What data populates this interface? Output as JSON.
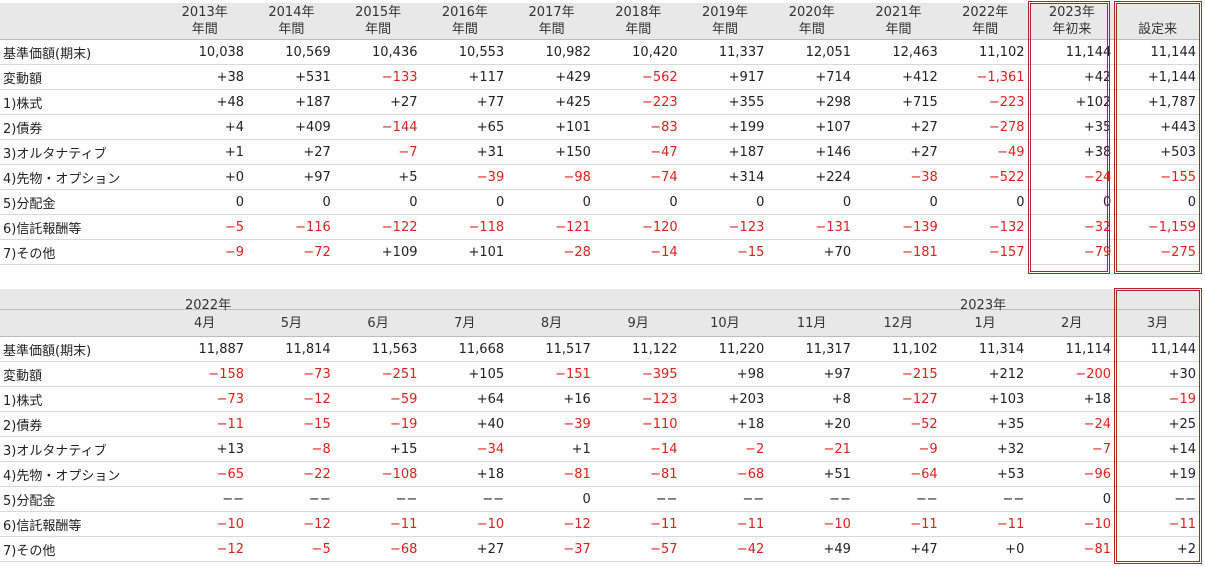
{
  "annual_table": {
    "header_top": [
      "2013年",
      "2014年",
      "2015年",
      "2016年",
      "2017年",
      "2018年",
      "2019年",
      "2020年",
      "2021年",
      "2022年",
      "2023年",
      ""
    ],
    "header_bottom": [
      "年間",
      "年間",
      "年間",
      "年間",
      "年間",
      "年間",
      "年間",
      "年間",
      "年間",
      "年間",
      "年初来",
      "設定来"
    ],
    "rows": [
      {
        "label": "基準価額(期末)",
        "values": [
          "10,038",
          "10,569",
          "10,436",
          "10,553",
          "10,982",
          "10,420",
          "11,337",
          "12,051",
          "12,463",
          "11,102",
          "11,144",
          "11,144"
        ]
      },
      {
        "label": "変動額",
        "values": [
          "+38",
          "+531",
          "−133",
          "+117",
          "+429",
          "−562",
          "+917",
          "+714",
          "+412",
          "−1,361",
          "+42",
          "+1,144"
        ]
      },
      {
        "label": "1)株式",
        "values": [
          "+48",
          "+187",
          "+27",
          "+77",
          "+425",
          "−223",
          "+355",
          "+298",
          "+715",
          "−223",
          "+102",
          "+1,787"
        ]
      },
      {
        "label": "2)債券",
        "values": [
          "+4",
          "+409",
          "−144",
          "+65",
          "+101",
          "−83",
          "+199",
          "+107",
          "+27",
          "−278",
          "+35",
          "+443"
        ]
      },
      {
        "label": "3)オルタナティブ",
        "values": [
          "+1",
          "+27",
          "−7",
          "+31",
          "+150",
          "−47",
          "+187",
          "+146",
          "+27",
          "−49",
          "+38",
          "+503"
        ]
      },
      {
        "label": "4)先物・オプション",
        "values": [
          "+0",
          "+97",
          "+5",
          "−39",
          "−98",
          "−74",
          "+314",
          "+224",
          "−38",
          "−522",
          "−24",
          "−155"
        ]
      },
      {
        "label": "5)分配金",
        "values": [
          "0",
          "0",
          "0",
          "0",
          "0",
          "0",
          "0",
          "0",
          "0",
          "0",
          "0",
          "0"
        ]
      },
      {
        "label": "6)信託報酬等",
        "values": [
          "−5",
          "−116",
          "−122",
          "−118",
          "−121",
          "−120",
          "−123",
          "−131",
          "−139",
          "−132",
          "−32",
          "−1,159"
        ]
      },
      {
        "label": "7)その他",
        "values": [
          "−9",
          "−72",
          "+109",
          "+101",
          "−28",
          "−14",
          "−15",
          "+70",
          "−181",
          "−157",
          "−79",
          "−275"
        ]
      }
    ]
  },
  "monthly_table": {
    "year_labels": [
      "2022年",
      "2023年"
    ],
    "months": [
      "4月",
      "5月",
      "6月",
      "7月",
      "8月",
      "9月",
      "10月",
      "11月",
      "12月",
      "1月",
      "2月",
      "3月"
    ],
    "rows": [
      {
        "label": "基準価額(期末)",
        "values": [
          "11,887",
          "11,814",
          "11,563",
          "11,668",
          "11,517",
          "11,122",
          "11,220",
          "11,317",
          "11,102",
          "11,314",
          "11,114",
          "11,144"
        ]
      },
      {
        "label": "変動額",
        "values": [
          "−158",
          "−73",
          "−251",
          "+105",
          "−151",
          "−395",
          "+98",
          "+97",
          "−215",
          "+212",
          "−200",
          "+30"
        ]
      },
      {
        "label": "1)株式",
        "values": [
          "−73",
          "−12",
          "−59",
          "+64",
          "+16",
          "−123",
          "+203",
          "+8",
          "−127",
          "+103",
          "+18",
          "−19"
        ]
      },
      {
        "label": "2)債券",
        "values": [
          "−11",
          "−15",
          "−19",
          "+40",
          "−39",
          "−110",
          "+18",
          "+20",
          "−52",
          "+35",
          "−24",
          "+25"
        ]
      },
      {
        "label": "3)オルタナティブ",
        "values": [
          "+13",
          "−8",
          "+15",
          "−34",
          "+1",
          "−14",
          "−2",
          "−21",
          "−9",
          "+32",
          "−7",
          "+14"
        ]
      },
      {
        "label": "4)先物・オプション",
        "values": [
          "−65",
          "−22",
          "−108",
          "+18",
          "−81",
          "−81",
          "−68",
          "+51",
          "−64",
          "+53",
          "−96",
          "+19"
        ]
      },
      {
        "label": "5)分配金",
        "values": [
          "−−",
          "−−",
          "−−",
          "−−",
          "0",
          "−−",
          "−−",
          "−−",
          "−−",
          "−−",
          "0",
          "−−"
        ]
      },
      {
        "label": "6)信託報酬等",
        "values": [
          "−10",
          "−12",
          "−11",
          "−10",
          "−12",
          "−11",
          "−11",
          "−10",
          "−11",
          "−11",
          "−10",
          "−11"
        ]
      },
      {
        "label": "7)その他",
        "values": [
          "−12",
          "−5",
          "−68",
          "+27",
          "−37",
          "−57",
          "−42",
          "+49",
          "+47",
          "+0",
          "−81",
          "+2"
        ]
      }
    ]
  },
  "colors": {
    "negative": "#e0201c",
    "header_bg": "#e8e8e8",
    "highlight_frame": "#b0242a"
  }
}
